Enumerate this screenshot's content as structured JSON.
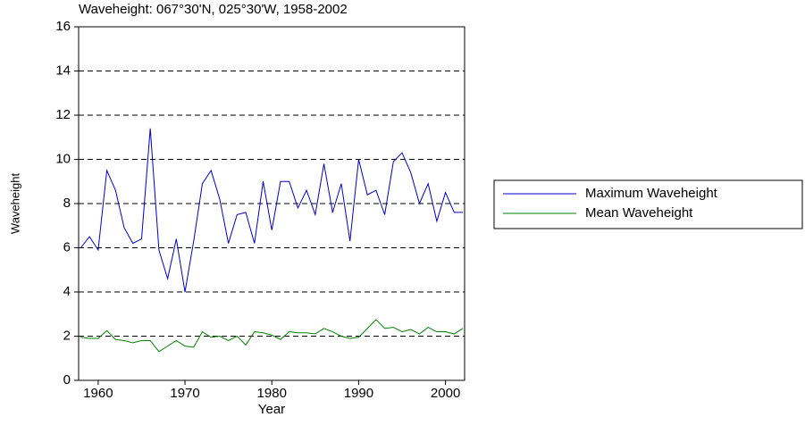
{
  "chart_data": {
    "type": "line",
    "title": "Waveheight: 067°30'N, 025°30'W,   1958-2002",
    "x_label": "Year",
    "y_label": "Waveheight",
    "x": [
      1958,
      1959,
      1960,
      1961,
      1962,
      1963,
      1964,
      1965,
      1966,
      1967,
      1968,
      1969,
      1970,
      1971,
      1972,
      1973,
      1974,
      1975,
      1976,
      1977,
      1978,
      1979,
      1980,
      1981,
      1982,
      1983,
      1984,
      1985,
      1986,
      1987,
      1988,
      1989,
      1990,
      1991,
      1992,
      1993,
      1994,
      1995,
      1996,
      1997,
      1998,
      1999,
      2000,
      2001,
      2002
    ],
    "series": [
      {
        "name": "Maximum Waveheight",
        "color": "#0000cc",
        "values": [
          6.0,
          6.5,
          5.9,
          9.5,
          8.6,
          6.9,
          6.2,
          6.4,
          11.4,
          5.9,
          4.6,
          6.4,
          4.0,
          6.3,
          8.9,
          9.5,
          8.2,
          6.2,
          7.5,
          7.6,
          6.2,
          9.0,
          6.8,
          9.0,
          9.0,
          7.8,
          8.6,
          7.5,
          9.8,
          7.6,
          8.9,
          6.3,
          10.0,
          8.4,
          8.6,
          7.5,
          9.9,
          10.3,
          9.4,
          8.0,
          8.9,
          7.2,
          8.5,
          7.6,
          7.6
        ]
      },
      {
        "name": "Mean Waveheight",
        "color": "#008000",
        "values": [
          1.95,
          1.9,
          1.9,
          2.25,
          1.85,
          1.8,
          1.7,
          1.8,
          1.8,
          1.3,
          1.55,
          1.8,
          1.55,
          1.5,
          2.2,
          1.95,
          2.0,
          1.8,
          2.0,
          1.6,
          2.2,
          2.15,
          2.05,
          1.85,
          2.2,
          2.15,
          2.15,
          2.1,
          2.35,
          2.2,
          2.0,
          1.9,
          1.95,
          2.35,
          2.75,
          2.35,
          2.4,
          2.2,
          2.3,
          2.1,
          2.4,
          2.2,
          2.2,
          2.1,
          2.35
        ]
      }
    ],
    "xlim": [
      1957.75,
      2002.2
    ],
    "xticks": [
      1960,
      1970,
      1980,
      1990,
      2000
    ],
    "ylim": [
      0,
      16
    ],
    "yticks": [
      0,
      2,
      4,
      6,
      8,
      10,
      12,
      14,
      16
    ],
    "grid": true,
    "legend": "right"
  }
}
